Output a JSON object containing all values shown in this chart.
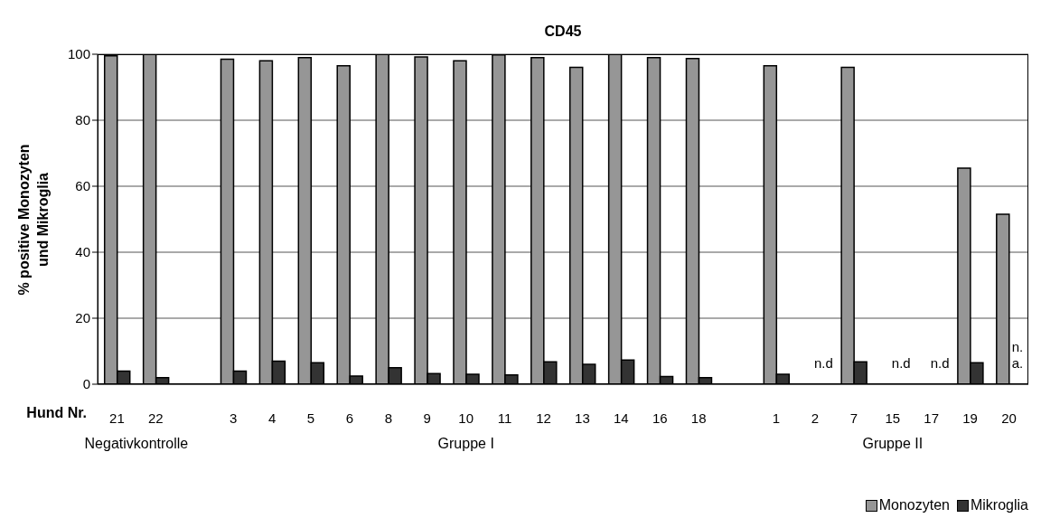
{
  "chart_data": {
    "type": "bar",
    "title": "CD45",
    "xlabel": "Hund Nr.",
    "ylabel": "% positive Monozyten und Mikroglia",
    "categories": [
      "21",
      "22",
      null,
      "3",
      "4",
      "5",
      "6",
      "8",
      "9",
      "10",
      "11",
      "12",
      "13",
      "14",
      "16",
      "18",
      null,
      "1",
      "2",
      "7",
      "15",
      "17",
      "19",
      "20"
    ],
    "series": [
      {
        "name": "Monozyten",
        "color": "#969696",
        "values": [
          99.5,
          100,
          null,
          98.5,
          98,
          99,
          96.5,
          100,
          99.2,
          98,
          99.8,
          99,
          96,
          100,
          99,
          98.7,
          null,
          96.5,
          null,
          96,
          null,
          null,
          65.5,
          51.5
        ]
      },
      {
        "name": "Mikroglia",
        "color": "#333333",
        "values": [
          4,
          2,
          null,
          4,
          7,
          6.5,
          2.5,
          5,
          3.2,
          3,
          2.8,
          6.8,
          6,
          7.3,
          2.3,
          2,
          null,
          3,
          null,
          6.8,
          null,
          null,
          6.5,
          null
        ]
      }
    ],
    "ylim": [
      0,
      100
    ],
    "yticks": [
      0,
      20,
      40,
      60,
      80,
      100
    ],
    "grid": "y",
    "legend": "bottom right",
    "annotations": [
      "Negativkontrolle",
      "Gruppe I",
      "Gruppe II",
      "n.d",
      "n.d",
      "n.d",
      "n.a."
    ]
  }
}
